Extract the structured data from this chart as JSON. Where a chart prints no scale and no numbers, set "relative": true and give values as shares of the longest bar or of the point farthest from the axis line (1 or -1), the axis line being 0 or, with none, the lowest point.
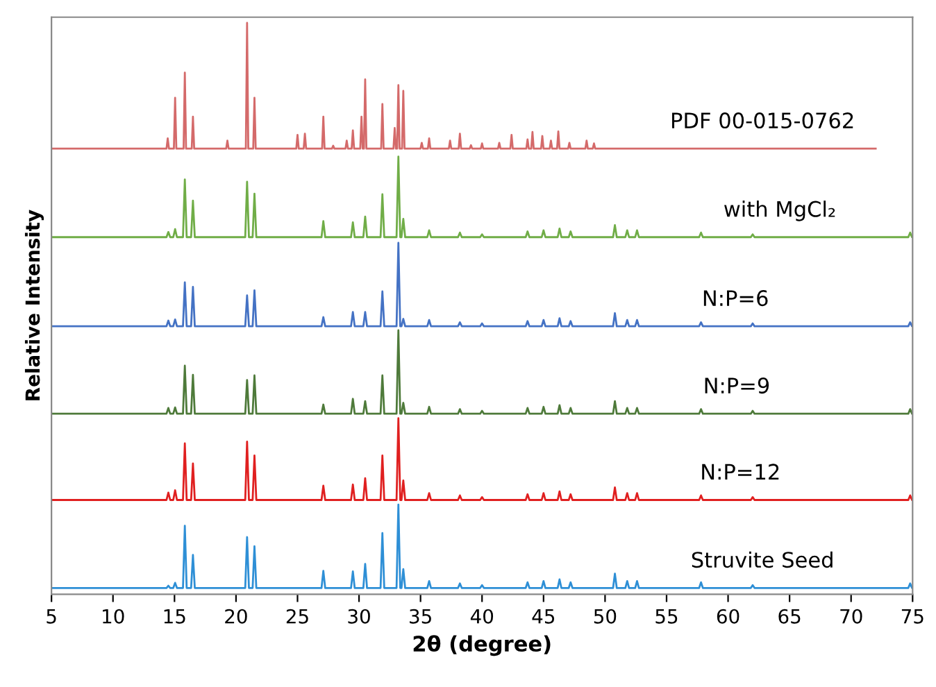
{
  "chart_data": {
    "type": "line",
    "relative": true,
    "xlabel": "2θ (degree)",
    "ylabel": "Relative Intensity",
    "xlim": [
      5,
      75
    ],
    "xticks": [
      5,
      10,
      15,
      20,
      25,
      30,
      35,
      40,
      45,
      50,
      55,
      60,
      65,
      70,
      75
    ],
    "grid": false,
    "legend": false,
    "marker": "none",
    "line_style": "solid",
    "x": [
      5,
      14.35,
      14.5,
      14.65,
      14.9,
      15.05,
      15.2,
      15.69,
      15.84,
      15.99,
      16.35,
      16.5,
      16.65,
      20.75,
      20.9,
      21.05,
      21.35,
      21.5,
      21.65,
      26.95,
      27.1,
      27.25,
      29.35,
      29.5,
      29.65,
      30.35,
      30.5,
      30.65,
      31.75,
      31.9,
      32.05,
      33.05,
      33.2,
      33.35,
      33.45,
      33.6,
      33.75,
      35.55,
      35.7,
      35.85,
      38.05,
      38.2,
      38.35,
      39.85,
      40.0,
      40.15,
      43.55,
      43.7,
      43.85,
      44.85,
      45.0,
      45.15,
      46.15,
      46.3,
      46.45,
      47.05,
      47.2,
      47.35,
      50.65,
      50.8,
      50.95,
      51.65,
      51.8,
      51.95,
      52.45,
      52.6,
      52.75,
      57.65,
      57.8,
      57.95,
      61.85,
      62.0,
      62.15,
      74.65,
      74.8,
      74.95,
      75
    ],
    "series": [
      {
        "name": "PDF 00-015-0762",
        "color": "#d46a6a",
        "x": [
          5,
          14.35,
          14.45,
          14.55,
          14.95,
          15.05,
          15.15,
          15.74,
          15.84,
          15.94,
          16.4,
          16.5,
          16.6,
          19.2,
          19.3,
          19.4,
          20.8,
          20.9,
          21.0,
          21.4,
          21.5,
          21.6,
          24.9,
          25.0,
          25.1,
          25.5,
          25.6,
          25.7,
          27.0,
          27.1,
          27.2,
          27.8,
          27.9,
          28.0,
          28.9,
          29.0,
          29.1,
          29.4,
          29.5,
          29.6,
          30.1,
          30.2,
          30.3,
          30.4,
          30.5,
          30.6,
          31.8,
          31.9,
          32.0,
          32.8,
          32.9,
          33.0,
          33.1,
          33.2,
          33.3,
          33.5,
          33.6,
          33.7,
          35.0,
          35.1,
          35.2,
          35.6,
          35.7,
          35.8,
          37.3,
          37.4,
          37.5,
          38.1,
          38.2,
          38.3,
          39.0,
          39.1,
          39.2,
          39.9,
          40.0,
          40.1,
          41.3,
          41.4,
          41.5,
          42.3,
          42.4,
          42.5,
          43.6,
          43.7,
          43.8,
          44.0,
          44.1,
          44.2,
          44.8,
          44.9,
          45.0,
          45.5,
          45.6,
          45.7,
          46.1,
          46.2,
          46.3,
          47.0,
          47.1,
          47.2,
          48.4,
          48.5,
          48.6,
          49.0,
          49.1,
          49.2,
          72
        ],
        "values": [
          0.78,
          0.78,
          0.798,
          0.78,
          0.78,
          0.869,
          0.78,
          0.78,
          0.913,
          0.78,
          0.78,
          0.836,
          0.78,
          0.78,
          0.794,
          0.78,
          0.78,
          1.0,
          0.78,
          0.78,
          0.869,
          0.78,
          0.78,
          0.804,
          0.78,
          0.78,
          0.806,
          0.78,
          0.78,
          0.836,
          0.78,
          0.78,
          0.785,
          0.78,
          0.78,
          0.794,
          0.78,
          0.78,
          0.812,
          0.78,
          0.78,
          0.836,
          0.78,
          0.78,
          0.901,
          0.78,
          0.78,
          0.858,
          0.78,
          0.78,
          0.816,
          0.78,
          0.78,
          0.891,
          0.78,
          0.78,
          0.881,
          0.78,
          0.78,
          0.79,
          0.78,
          0.78,
          0.798,
          0.78,
          0.78,
          0.794,
          0.78,
          0.78,
          0.806,
          0.78,
          0.78,
          0.786,
          0.78,
          0.78,
          0.789,
          0.78,
          0.78,
          0.79,
          0.78,
          0.78,
          0.804,
          0.78,
          0.78,
          0.796,
          0.78,
          0.78,
          0.809,
          0.78,
          0.78,
          0.802,
          0.78,
          0.78,
          0.794,
          0.78,
          0.78,
          0.81,
          0.78,
          0.78,
          0.79,
          0.78,
          0.78,
          0.794,
          0.78,
          0.78,
          0.789,
          0.78,
          0.78
        ]
      },
      {
        "name": "with MgCl₂",
        "color": "#70ad47",
        "values": [
          0.625,
          0.625,
          0.634,
          0.625,
          0.625,
          0.639,
          0.625,
          0.625,
          0.726,
          0.625,
          0.625,
          0.689,
          0.625,
          0.625,
          0.722,
          0.625,
          0.625,
          0.701,
          0.625,
          0.625,
          0.653,
          0.625,
          0.625,
          0.651,
          0.625,
          0.625,
          0.661,
          0.625,
          0.625,
          0.7,
          0.625,
          0.625,
          0.766,
          0.625,
          0.625,
          0.657,
          0.625,
          0.625,
          0.637,
          0.625,
          0.625,
          0.633,
          0.625,
          0.625,
          0.63,
          0.625,
          0.625,
          0.635,
          0.625,
          0.625,
          0.637,
          0.625,
          0.625,
          0.64,
          0.625,
          0.625,
          0.635,
          0.625,
          0.625,
          0.646,
          0.625,
          0.625,
          0.637,
          0.625,
          0.625,
          0.637,
          0.625,
          0.625,
          0.633,
          0.625,
          0.625,
          0.63,
          0.625,
          0.625,
          0.633,
          0.625,
          0.625
        ]
      },
      {
        "name": "N:P=6",
        "color": "#4472c4",
        "values": [
          0.469,
          0.469,
          0.479,
          0.469,
          0.469,
          0.481,
          0.469,
          0.469,
          0.546,
          0.469,
          0.469,
          0.538,
          0.469,
          0.469,
          0.523,
          0.469,
          0.469,
          0.532,
          0.469,
          0.469,
          0.485,
          0.469,
          0.469,
          0.494,
          0.469,
          0.469,
          0.494,
          0.469,
          0.469,
          0.53,
          0.469,
          0.469,
          0.615,
          0.469,
          0.469,
          0.482,
          0.469,
          0.469,
          0.48,
          0.469,
          0.469,
          0.476,
          0.469,
          0.469,
          0.474,
          0.469,
          0.469,
          0.478,
          0.469,
          0.469,
          0.48,
          0.469,
          0.469,
          0.483,
          0.469,
          0.469,
          0.478,
          0.469,
          0.469,
          0.492,
          0.469,
          0.469,
          0.48,
          0.469,
          0.469,
          0.48,
          0.469,
          0.469,
          0.476,
          0.469,
          0.469,
          0.474,
          0.469,
          0.469,
          0.476,
          0.469,
          0.469
        ]
      },
      {
        "name": "N:P=9",
        "color": "#4e7a3a",
        "values": [
          0.316,
          0.316,
          0.326,
          0.316,
          0.316,
          0.327,
          0.316,
          0.316,
          0.4,
          0.316,
          0.316,
          0.384,
          0.316,
          0.316,
          0.375,
          0.316,
          0.316,
          0.383,
          0.316,
          0.316,
          0.332,
          0.316,
          0.316,
          0.342,
          0.316,
          0.316,
          0.338,
          0.316,
          0.316,
          0.383,
          0.316,
          0.316,
          0.462,
          0.316,
          0.316,
          0.335,
          0.316,
          0.316,
          0.328,
          0.316,
          0.316,
          0.324,
          0.316,
          0.316,
          0.321,
          0.316,
          0.316,
          0.326,
          0.316,
          0.316,
          0.328,
          0.316,
          0.316,
          0.331,
          0.316,
          0.316,
          0.326,
          0.316,
          0.316,
          0.338,
          0.316,
          0.316,
          0.326,
          0.316,
          0.316,
          0.326,
          0.316,
          0.316,
          0.324,
          0.316,
          0.316,
          0.321,
          0.316,
          0.316,
          0.324,
          0.316,
          0.316
        ]
      },
      {
        "name": "N:P=12",
        "color": "#e02020",
        "values": [
          0.165,
          0.165,
          0.178,
          0.165,
          0.165,
          0.182,
          0.165,
          0.165,
          0.264,
          0.165,
          0.165,
          0.229,
          0.165,
          0.165,
          0.267,
          0.165,
          0.165,
          0.243,
          0.165,
          0.165,
          0.19,
          0.165,
          0.165,
          0.192,
          0.165,
          0.165,
          0.203,
          0.165,
          0.165,
          0.243,
          0.165,
          0.165,
          0.308,
          0.165,
          0.165,
          0.199,
          0.165,
          0.165,
          0.177,
          0.165,
          0.165,
          0.173,
          0.165,
          0.165,
          0.17,
          0.165,
          0.165,
          0.175,
          0.165,
          0.165,
          0.177,
          0.165,
          0.165,
          0.18,
          0.165,
          0.165,
          0.175,
          0.165,
          0.165,
          0.187,
          0.165,
          0.165,
          0.177,
          0.165,
          0.165,
          0.177,
          0.165,
          0.165,
          0.173,
          0.165,
          0.165,
          0.17,
          0.165,
          0.165,
          0.173,
          0.165,
          0.165
        ]
      },
      {
        "name": "Struvite Seed",
        "color": "#2e8fd6",
        "values": [
          0.011,
          0.011,
          0.015,
          0.011,
          0.011,
          0.02,
          0.011,
          0.011,
          0.12,
          0.011,
          0.011,
          0.069,
          0.011,
          0.011,
          0.1,
          0.011,
          0.011,
          0.084,
          0.011,
          0.011,
          0.041,
          0.011,
          0.011,
          0.04,
          0.011,
          0.011,
          0.053,
          0.011,
          0.011,
          0.107,
          0.011,
          0.011,
          0.157,
          0.011,
          0.011,
          0.044,
          0.011,
          0.011,
          0.023,
          0.011,
          0.011,
          0.019,
          0.011,
          0.011,
          0.016,
          0.011,
          0.011,
          0.021,
          0.011,
          0.011,
          0.023,
          0.011,
          0.011,
          0.026,
          0.011,
          0.011,
          0.021,
          0.011,
          0.011,
          0.036,
          0.011,
          0.011,
          0.023,
          0.011,
          0.011,
          0.023,
          0.011,
          0.011,
          0.021,
          0.011,
          0.011,
          0.016,
          0.011,
          0.011,
          0.019,
          0.011,
          0.011
        ]
      }
    ]
  }
}
